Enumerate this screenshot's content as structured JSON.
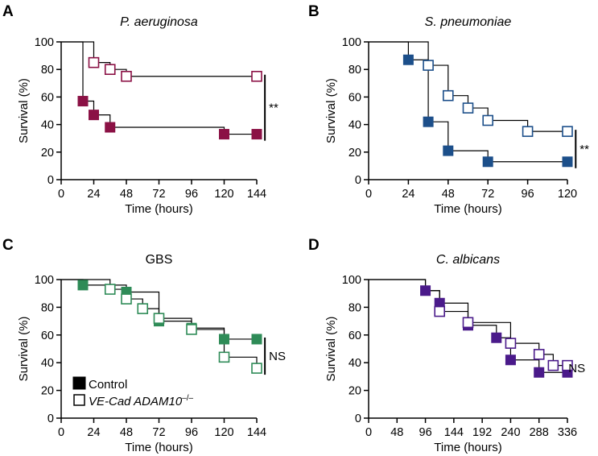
{
  "figure": {
    "legend": {
      "control_label": "Control",
      "ko_label_main": "VE-Cad ADAM10",
      "ko_label_sup": "–/–"
    },
    "colors": {
      "axis": "#000000",
      "line": "#000000"
    }
  },
  "chart_data": [
    {
      "panel": "A",
      "type": "line",
      "subtype": "kaplan-meier",
      "title": "P. aeruginosa",
      "title_italic": true,
      "xlabel": "Time (hours)",
      "ylabel": "Survival (%)",
      "xlim": [
        0,
        144
      ],
      "ylim": [
        0,
        100
      ],
      "xticks": [
        0,
        24,
        48,
        72,
        96,
        120,
        144
      ],
      "yticks": [
        0,
        20,
        40,
        60,
        80,
        100
      ],
      "color": "#8b1145",
      "series": [
        {
          "name": "Control",
          "filled": true,
          "steps": [
            [
              0,
              100
            ],
            [
              16,
              57
            ],
            [
              24,
              47
            ],
            [
              36,
              38
            ],
            [
              120,
              33
            ],
            [
              144,
              33
            ]
          ],
          "markers": [
            [
              16,
              57
            ],
            [
              24,
              47
            ],
            [
              36,
              38
            ],
            [
              120,
              33
            ],
            [
              144,
              33
            ]
          ]
        },
        {
          "name": "VE-Cad ADAM10-/-",
          "filled": false,
          "steps": [
            [
              0,
              100
            ],
            [
              24,
              85
            ],
            [
              36,
              80
            ],
            [
              48,
              75
            ],
            [
              144,
              75
            ]
          ],
          "markers": [
            [
              24,
              85
            ],
            [
              36,
              80
            ],
            [
              48,
              75
            ],
            [
              144,
              75
            ]
          ]
        }
      ],
      "significance": {
        "label": "**",
        "y_range": [
          33,
          75
        ],
        "x": 150
      }
    },
    {
      "panel": "B",
      "type": "line",
      "subtype": "kaplan-meier",
      "title": "S. pneumoniae",
      "title_italic": true,
      "xlabel": "Time (hours)",
      "ylabel": "Survival (%)",
      "xlim": [
        0,
        120
      ],
      "ylim": [
        0,
        100
      ],
      "xticks": [
        0,
        24,
        48,
        72,
        96,
        120
      ],
      "yticks": [
        0,
        20,
        40,
        60,
        80,
        100
      ],
      "color": "#1c4f8a",
      "series": [
        {
          "name": "Control",
          "filled": true,
          "steps": [
            [
              0,
              100
            ],
            [
              24,
              87
            ],
            [
              36,
              42
            ],
            [
              48,
              21
            ],
            [
              72,
              13
            ],
            [
              120,
              13
            ]
          ],
          "markers": [
            [
              24,
              87
            ],
            [
              36,
              42
            ],
            [
              48,
              21
            ],
            [
              72,
              13
            ],
            [
              120,
              13
            ]
          ]
        },
        {
          "name": "VE-Cad ADAM10-/-",
          "filled": false,
          "steps": [
            [
              0,
              100
            ],
            [
              24,
              100
            ],
            [
              36,
              83
            ],
            [
              48,
              61
            ],
            [
              60,
              52
            ],
            [
              72,
              43
            ],
            [
              96,
              35
            ],
            [
              120,
              35
            ]
          ],
          "markers": [
            [
              36,
              83
            ],
            [
              48,
              61
            ],
            [
              60,
              52
            ],
            [
              72,
              43
            ],
            [
              96,
              35
            ],
            [
              120,
              35
            ]
          ]
        }
      ],
      "significance": {
        "label": "**",
        "y_range": [
          13,
          35
        ],
        "x": 125
      }
    },
    {
      "panel": "C",
      "type": "line",
      "subtype": "kaplan-meier",
      "title": "GBS",
      "title_italic": false,
      "xlabel": "Time (hours)",
      "ylabel": "Survival (%)",
      "xlim": [
        0,
        144
      ],
      "ylim": [
        0,
        100
      ],
      "xticks": [
        0,
        24,
        48,
        72,
        96,
        120,
        144
      ],
      "yticks": [
        0,
        20,
        40,
        60,
        80,
        100
      ],
      "color": "#2e8b57",
      "series": [
        {
          "name": "Control",
          "filled": true,
          "steps": [
            [
              0,
              100
            ],
            [
              16,
              96
            ],
            [
              48,
              91
            ],
            [
              72,
              70
            ],
            [
              96,
              65
            ],
            [
              120,
              57
            ],
            [
              144,
              57
            ]
          ],
          "markers": [
            [
              16,
              96
            ],
            [
              48,
              91
            ],
            [
              72,
              70
            ],
            [
              96,
              65
            ],
            [
              120,
              57
            ],
            [
              144,
              57
            ]
          ]
        },
        {
          "name": "VE-Cad ADAM10-/-",
          "filled": false,
          "steps": [
            [
              0,
              100
            ],
            [
              36,
              93
            ],
            [
              48,
              86
            ],
            [
              60,
              79
            ],
            [
              72,
              72
            ],
            [
              96,
              64
            ],
            [
              120,
              44
            ],
            [
              144,
              36
            ]
          ],
          "markers": [
            [
              36,
              93
            ],
            [
              48,
              86
            ],
            [
              60,
              79
            ],
            [
              72,
              72
            ],
            [
              96,
              64
            ],
            [
              120,
              44
            ],
            [
              144,
              36
            ]
          ]
        }
      ],
      "significance": {
        "label": "NS",
        "y_range": [
          36,
          57
        ],
        "x": 150
      }
    },
    {
      "panel": "D",
      "type": "line",
      "subtype": "kaplan-meier",
      "title": "C. albicans",
      "title_italic": true,
      "xlabel": "Time (hours)",
      "ylabel": "Survival (%)",
      "xlim": [
        0,
        336
      ],
      "ylim": [
        0,
        100
      ],
      "xticks": [
        0,
        48,
        96,
        144,
        192,
        240,
        288,
        336
      ],
      "yticks": [
        0,
        20,
        40,
        60,
        80,
        100
      ],
      "color": "#4a1a8a",
      "series": [
        {
          "name": "Control",
          "filled": true,
          "steps": [
            [
              0,
              100
            ],
            [
              96,
              92
            ],
            [
              120,
              83
            ],
            [
              168,
              67
            ],
            [
              216,
              58
            ],
            [
              240,
              42
            ],
            [
              288,
              33
            ],
            [
              336,
              33
            ]
          ],
          "markers": [
            [
              96,
              92
            ],
            [
              120,
              83
            ],
            [
              168,
              67
            ],
            [
              216,
              58
            ],
            [
              240,
              42
            ],
            [
              288,
              33
            ],
            [
              336,
              33
            ]
          ]
        },
        {
          "name": "VE-Cad ADAM10-/-",
          "filled": false,
          "steps": [
            [
              0,
              100
            ],
            [
              96,
              92
            ],
            [
              120,
              77
            ],
            [
              168,
              69
            ],
            [
              240,
              54
            ],
            [
              288,
              46
            ],
            [
              312,
              38
            ],
            [
              336,
              38
            ]
          ],
          "markers": [
            [
              120,
              77
            ],
            [
              168,
              69
            ],
            [
              240,
              54
            ],
            [
              288,
              46
            ],
            [
              312,
              38
            ],
            [
              336,
              38
            ]
          ]
        }
      ],
      "significance": {
        "label": "NS",
        "y_range": null,
        "x": 350
      }
    }
  ]
}
